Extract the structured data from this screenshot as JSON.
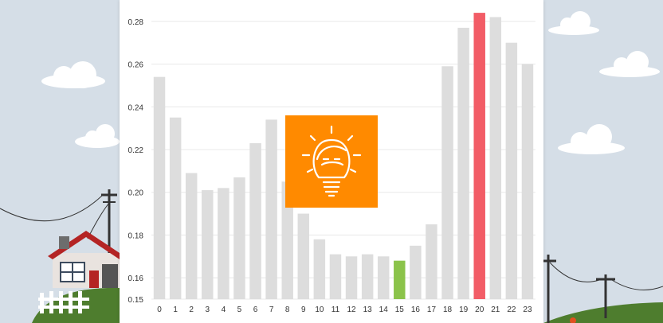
{
  "chart_data": {
    "type": "bar",
    "title": "",
    "xlabel": "",
    "ylabel": "",
    "categories": [
      "0",
      "1",
      "2",
      "3",
      "4",
      "5",
      "6",
      "7",
      "8",
      "9",
      "10",
      "11",
      "12",
      "13",
      "14",
      "15",
      "16",
      "17",
      "18",
      "19",
      "20",
      "21",
      "22",
      "23"
    ],
    "values": [
      0.254,
      0.235,
      0.209,
      0.201,
      0.202,
      0.207,
      0.223,
      0.234,
      0.205,
      0.19,
      0.178,
      0.171,
      0.17,
      0.171,
      0.17,
      0.168,
      0.175,
      0.185,
      0.259,
      0.277,
      0.284,
      0.282,
      0.27,
      0.26
    ],
    "ylim": [
      0.15,
      0.29
    ],
    "yticks": [
      "0.15",
      "0.16",
      "0.18",
      "0.20",
      "0.22",
      "0.24",
      "0.26",
      "0.28"
    ],
    "grid": true,
    "highlight_min_index": 15,
    "highlight_max_index": 20
  },
  "colors": {
    "bar_default": "#dddddd",
    "bar_min": "#8bc34a",
    "bar_max": "#f25c66",
    "badge": "#ff8a00",
    "sky": "#d5dee7",
    "grass": "#4e7d2e"
  },
  "badge": {
    "icon": "lightbulb-face-icon"
  }
}
